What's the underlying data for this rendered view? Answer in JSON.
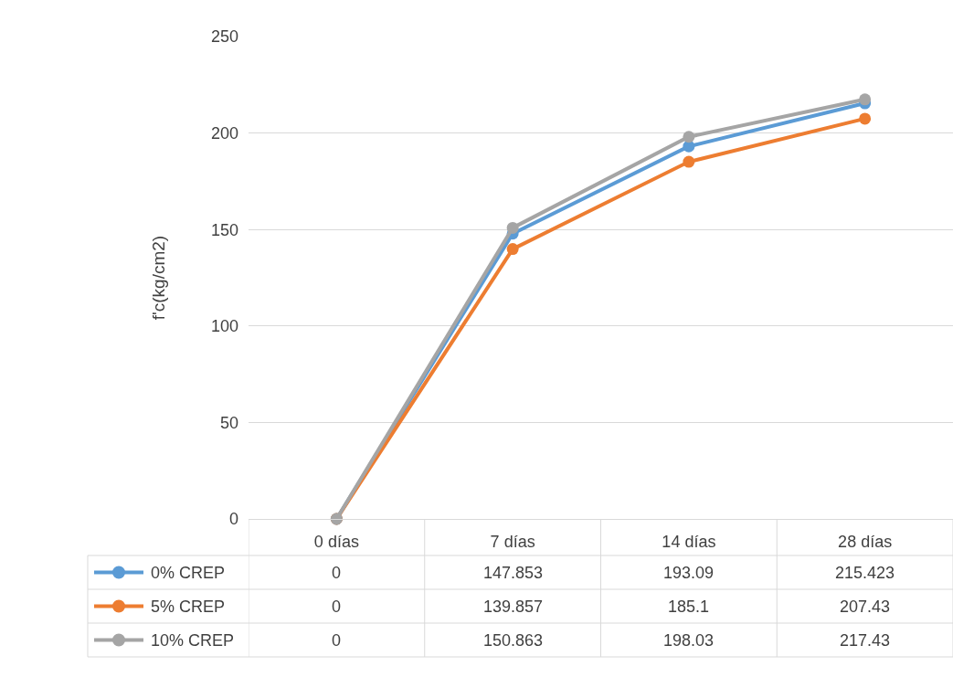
{
  "chart_data": {
    "type": "line",
    "ylabel": "f'c(kg/cm2)",
    "categories": [
      "0 días",
      "7 días",
      "14 días",
      "28 días"
    ],
    "series": [
      {
        "name": "0% CREP",
        "color": "#5b9bd5",
        "values": [
          0,
          147.853,
          193.09,
          215.423
        ]
      },
      {
        "name": "5% CREP",
        "color": "#ed7d31",
        "values": [
          0,
          139.857,
          185.1,
          207.43
        ]
      },
      {
        "name": "10% CREP",
        "color": "#a5a5a5",
        "values": [
          0,
          150.863,
          198.03,
          217.43
        ]
      }
    ],
    "ylim": [
      0,
      250
    ],
    "yticks": [
      0,
      50,
      100,
      150,
      200,
      250
    ],
    "grid": "y",
    "legend": "bottom left",
    "marker": "circle",
    "line_style": "solid",
    "data_labels": true
  }
}
